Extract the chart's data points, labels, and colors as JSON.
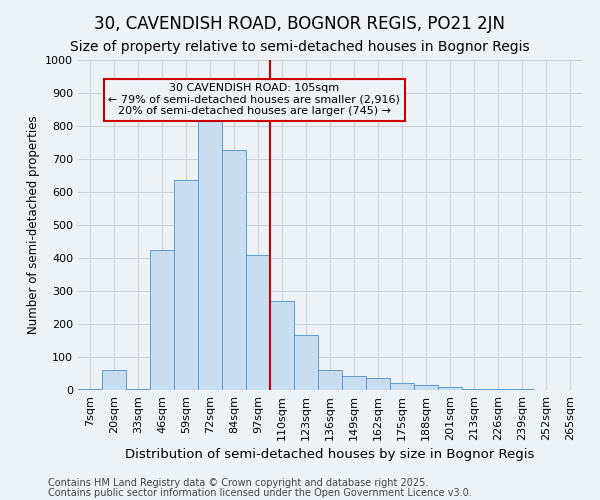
{
  "title": "30, CAVENDISH ROAD, BOGNOR REGIS, PO21 2JN",
  "subtitle": "Size of property relative to semi-detached houses in Bognor Regis",
  "xlabel": "Distribution of semi-detached houses by size in Bognor Regis",
  "ylabel": "Number of semi-detached properties",
  "footer_line1": "Contains HM Land Registry data © Crown copyright and database right 2025.",
  "footer_line2": "Contains public sector information licensed under the Open Government Licence v3.0.",
  "categories": [
    "7sqm",
    "20sqm",
    "33sqm",
    "46sqm",
    "59sqm",
    "72sqm",
    "84sqm",
    "97sqm",
    "110sqm",
    "123sqm",
    "136sqm",
    "149sqm",
    "162sqm",
    "175sqm",
    "188sqm",
    "201sqm",
    "213sqm",
    "226sqm",
    "239sqm",
    "252sqm",
    "265sqm"
  ],
  "values": [
    3,
    62,
    3,
    425,
    637,
    815,
    728,
    410,
    270,
    168,
    62,
    42,
    35,
    20,
    15,
    8,
    3,
    2,
    3,
    1,
    1
  ],
  "bar_color": "#c8ddf0",
  "bar_edge_color": "#5b9bd5",
  "grid_color": "#c8d0da",
  "bg_color": "#edf2f7",
  "vline_x": 8.0,
  "vline_color": "#cc0000",
  "annotation_text_line1": "30 CAVENDISH ROAD: 105sqm",
  "annotation_text_line2": "← 79% of semi-detached houses are smaller (2,916)",
  "annotation_text_line3": "20% of semi-detached houses are larger (745) →",
  "annotation_box_color": "#cc0000",
  "ylim": [
    0,
    1000
  ],
  "yticks": [
    0,
    100,
    200,
    300,
    400,
    500,
    600,
    700,
    800,
    900,
    1000
  ],
  "title_fontsize": 12,
  "subtitle_fontsize": 10,
  "xlabel_fontsize": 9.5,
  "ylabel_fontsize": 8.5,
  "tick_fontsize": 8,
  "annotation_fontsize": 8,
  "footer_fontsize": 7
}
